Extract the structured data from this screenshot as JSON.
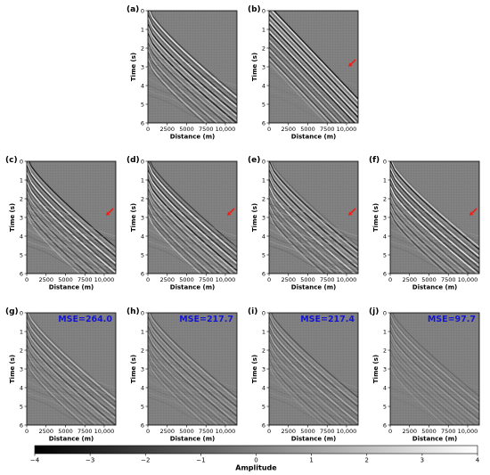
{
  "chart_data": {
    "type": "heatmap",
    "description_x": "Distance (m)",
    "panels": [
      {
        "id": "a",
        "label": "(a)",
        "xlabel": "Distance (m)",
        "ylabel": "Time (s)",
        "x_ticks": [
          "0",
          "2500",
          "5000",
          "7500",
          "10,000"
        ],
        "y_ticks": [
          "0",
          "1",
          "2",
          "3",
          "4",
          "5",
          "6"
        ],
        "xlim": [
          0,
          11500
        ],
        "ylim": [
          6,
          0
        ],
        "arrow": false,
        "mse": ""
      },
      {
        "id": "b",
        "label": "(b)",
        "xlabel": "Distance (m)",
        "ylabel": "Time (s)",
        "x_ticks": [
          "0",
          "2500",
          "5000",
          "7500",
          "10,000"
        ],
        "y_ticks": [
          "0",
          "1",
          "2",
          "3",
          "4",
          "5",
          "6"
        ],
        "xlim": [
          0,
          11500
        ],
        "ylim": [
          6,
          0
        ],
        "arrow": true,
        "mse": ""
      },
      {
        "id": "c",
        "label": "(c)",
        "xlabel": "Distance (m)",
        "ylabel": "Time (s)",
        "x_ticks": [
          "0",
          "2500",
          "5000",
          "7500",
          "10,000"
        ],
        "y_ticks": [
          "0",
          "1",
          "2",
          "3",
          "4",
          "5",
          "6"
        ],
        "xlim": [
          0,
          11500
        ],
        "ylim": [
          6,
          0
        ],
        "arrow": true,
        "mse": ""
      },
      {
        "id": "d",
        "label": "(d)",
        "xlabel": "Distance (m)",
        "ylabel": "Time (s)",
        "x_ticks": [
          "0",
          "2500",
          "5000",
          "7500",
          "10,000"
        ],
        "y_ticks": [
          "0",
          "1",
          "2",
          "3",
          "4",
          "5",
          "6"
        ],
        "xlim": [
          0,
          11500
        ],
        "ylim": [
          6,
          0
        ],
        "arrow": true,
        "mse": ""
      },
      {
        "id": "e",
        "label": "(e)",
        "xlabel": "Distance (m)",
        "ylabel": "Time (s)",
        "x_ticks": [
          "0",
          "2500",
          "5000",
          "7500",
          "10,000"
        ],
        "y_ticks": [
          "0",
          "1",
          "2",
          "3",
          "4",
          "5",
          "6"
        ],
        "xlim": [
          0,
          11500
        ],
        "ylim": [
          6,
          0
        ],
        "arrow": true,
        "mse": ""
      },
      {
        "id": "f",
        "label": "(f)",
        "xlabel": "Distance (m)",
        "ylabel": "Time (s)",
        "x_ticks": [
          "0",
          "2500",
          "5000",
          "7500",
          "10,000"
        ],
        "y_ticks": [
          "0",
          "1",
          "2",
          "3",
          "4",
          "5",
          "6"
        ],
        "xlim": [
          0,
          11500
        ],
        "ylim": [
          6,
          0
        ],
        "arrow": true,
        "mse": ""
      },
      {
        "id": "g",
        "label": "(g)",
        "xlabel": "Distance (m)",
        "ylabel": "Time (s)",
        "x_ticks": [
          "0",
          "2500",
          "5000",
          "7500",
          "10,000"
        ],
        "y_ticks": [
          "0",
          "1",
          "2",
          "3",
          "4",
          "5",
          "6"
        ],
        "xlim": [
          0,
          11500
        ],
        "ylim": [
          6,
          0
        ],
        "arrow": false,
        "mse": "MSE=264.0"
      },
      {
        "id": "h",
        "label": "(h)",
        "xlabel": "Distance (m)",
        "ylabel": "Time (s)",
        "x_ticks": [
          "0",
          "2500",
          "5000",
          "7500",
          "10,000"
        ],
        "y_ticks": [
          "0",
          "1",
          "2",
          "3",
          "4",
          "5",
          "6"
        ],
        "xlim": [
          0,
          11500
        ],
        "ylim": [
          6,
          0
        ],
        "arrow": false,
        "mse": "MSE=217.7"
      },
      {
        "id": "i",
        "label": "(i)",
        "xlabel": "Distance (m)",
        "ylabel": "Time (s)",
        "x_ticks": [
          "0",
          "2500",
          "5000",
          "7500",
          "10,000"
        ],
        "y_ticks": [
          "0",
          "1",
          "2",
          "3",
          "4",
          "5",
          "6"
        ],
        "xlim": [
          0,
          11500
        ],
        "ylim": [
          6,
          0
        ],
        "arrow": false,
        "mse": "MSE=217.4"
      },
      {
        "id": "j",
        "label": "(j)",
        "xlabel": "Distance (m)",
        "ylabel": "Time (s)",
        "x_ticks": [
          "0",
          "2500",
          "5000",
          "7500",
          "10,000"
        ],
        "y_ticks": [
          "0",
          "1",
          "2",
          "3",
          "4",
          "5",
          "6"
        ],
        "xlim": [
          0,
          11500
        ],
        "ylim": [
          6,
          0
        ],
        "arrow": false,
        "mse": "MSE=97.7"
      }
    ],
    "colorbar": {
      "label": "Amplitude",
      "ticks": [
        "−4",
        "−3",
        "−2",
        "−1",
        "0",
        "1",
        "2",
        "3",
        "4"
      ],
      "range": [
        -4,
        4
      ],
      "colormap": "gray"
    },
    "colors": {
      "background": "#808080",
      "arrow": "#e8211a",
      "mse_text": "#1515d6"
    }
  }
}
